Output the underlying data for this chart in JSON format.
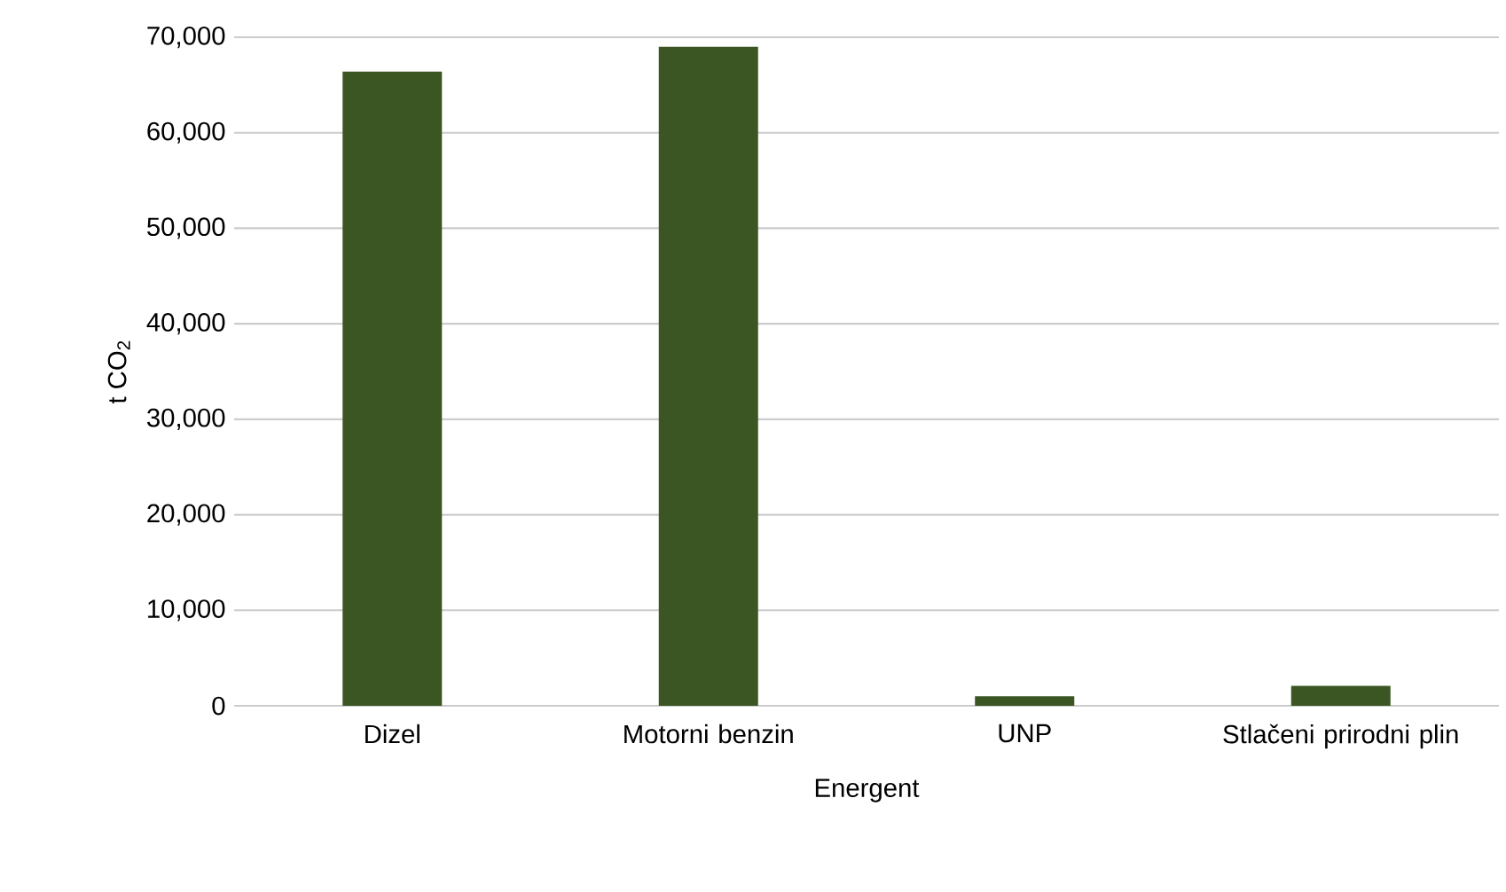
{
  "chart_data": {
    "type": "bar",
    "xlabel": "Energent",
    "ylabel": "t CO$_{2}$",
    "categories": [
      "Dizel",
      "Motorni benzin",
      "UNP",
      "Stlačeni prirodni plin"
    ],
    "values": [
      66400,
      69000,
      1000,
      2100
    ],
    "color": "#3b5623",
    "ylim": [
      0,
      70000
    ],
    "yticks": [
      {
        "value": 0,
        "label": "0"
      },
      {
        "value": 10000,
        "label": "10,000"
      },
      {
        "value": 20000,
        "label": "20,000"
      },
      {
        "value": 30000,
        "label": "30,000"
      },
      {
        "value": 40000,
        "label": "40,000"
      },
      {
        "value": 50000,
        "label": "50,000"
      },
      {
        "value": 60000,
        "label": "60,000"
      },
      {
        "value": 70000,
        "label": "70,000"
      }
    ],
    "grid": "y"
  }
}
